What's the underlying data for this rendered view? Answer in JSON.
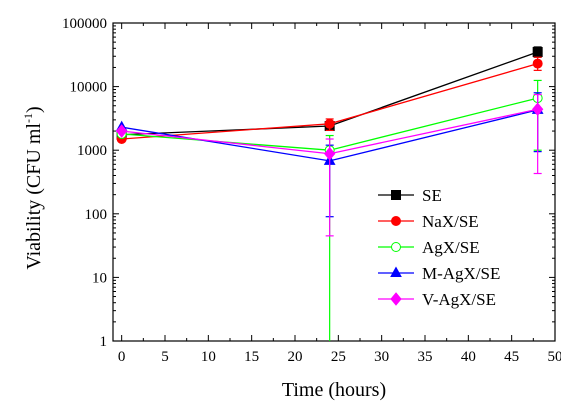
{
  "chart_data": {
    "type": "line",
    "xlabel": "Time (hours)",
    "ylabel": {
      "main": "Viability (CFU ml",
      "sup": "-1",
      "close": ")"
    },
    "xlim": [
      -1,
      50
    ],
    "ylim": [
      1,
      100000
    ],
    "y_scale": "log",
    "grid": false,
    "legend_position": "center-right",
    "x_ticks": [
      0,
      5,
      10,
      15,
      20,
      25,
      30,
      35,
      40,
      45,
      50
    ],
    "x_tick_labels": [
      "0",
      "5",
      "10",
      "15",
      "20",
      "25",
      "30",
      "35",
      "40",
      "45",
      "50"
    ],
    "y_ticks": [
      1,
      10,
      100,
      1000,
      10000,
      100000
    ],
    "y_tick_labels": [
      "1",
      "10",
      "100",
      "1000",
      "10000",
      "100000"
    ],
    "x": [
      0,
      24,
      48
    ],
    "series": [
      {
        "name": "SE",
        "color": "#000000",
        "marker": "square",
        "filled": true,
        "values": [
          1750,
          2400,
          35000
        ],
        "err_low": [
          null,
          null,
          29000
        ],
        "err_high": [
          null,
          null,
          42000
        ]
      },
      {
        "name": "NaX/SE",
        "color": "#ff0000",
        "marker": "circle",
        "filled": true,
        "values": [
          1500,
          2600,
          23000
        ],
        "err_low": [
          null,
          2050,
          18000
        ],
        "err_high": [
          null,
          3100,
          29000
        ]
      },
      {
        "name": "AgX/SE",
        "color": "#00ff00",
        "marker": "circle",
        "filled": false,
        "values": [
          1800,
          1000,
          6600
        ],
        "err_low": [
          null,
          1,
          1000
        ],
        "err_high": [
          null,
          1700,
          12500
        ]
      },
      {
        "name": "M-AgX/SE",
        "color": "#0000ff",
        "marker": "triangle",
        "filled": true,
        "values": [
          2300,
          680,
          4300
        ],
        "err_low": [
          null,
          90,
          950
        ],
        "err_high": [
          null,
          1200,
          8000
        ]
      },
      {
        "name": "V-AgX/SE",
        "color": "#ff00ff",
        "marker": "diamond",
        "filled": true,
        "values": [
          2000,
          880,
          4400
        ],
        "err_low": [
          null,
          45,
          430
        ],
        "err_high": [
          null,
          1500,
          7500
        ]
      }
    ]
  }
}
